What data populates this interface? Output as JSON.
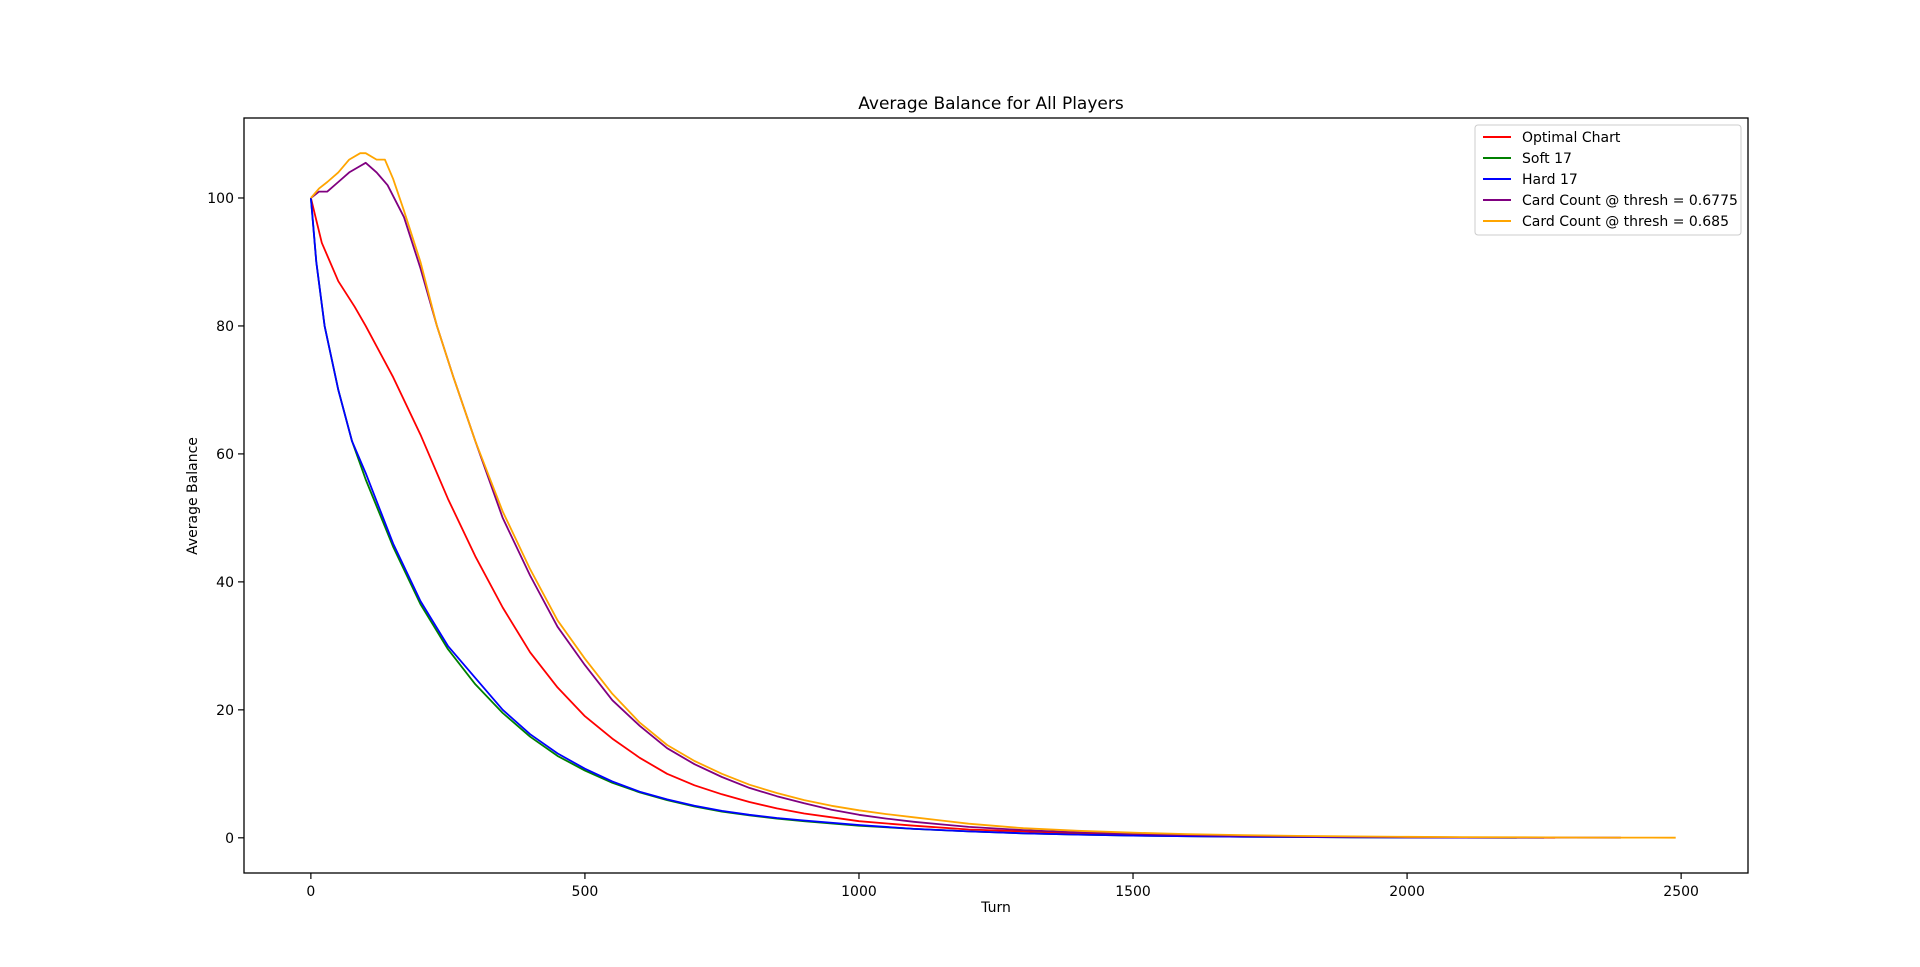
{
  "chart_data": {
    "type": "line",
    "title": "Average Balance for All Players",
    "xlabel": "Turn",
    "ylabel": "Average Balance",
    "xlim": [
      -122,
      2622
    ],
    "ylim": [
      -5.5,
      112.5
    ],
    "xticks": [
      0,
      500,
      1000,
      1500,
      2000,
      2500
    ],
    "yticks": [
      0,
      20,
      40,
      60,
      80,
      100
    ],
    "grid": false,
    "legend_position": "top-right",
    "series": [
      {
        "name": "Optimal Chart",
        "color": "#ff0000",
        "x": [
          0,
          20,
          50,
          80,
          100,
          150,
          200,
          250,
          300,
          350,
          400,
          450,
          500,
          550,
          600,
          650,
          700,
          750,
          800,
          850,
          900,
          950,
          1000,
          1100,
          1200,
          1300,
          1400,
          1500,
          1600,
          1700,
          1800,
          1900,
          2000,
          2100,
          2200,
          2270
        ],
        "y": [
          100,
          93,
          87,
          83,
          80,
          72,
          63,
          53,
          44,
          36,
          29,
          23.5,
          19,
          15.5,
          12.5,
          10,
          8.2,
          6.8,
          5.6,
          4.6,
          3.8,
          3.2,
          2.6,
          1.9,
          1.3,
          1.0,
          0.7,
          0.5,
          0.35,
          0.25,
          0.18,
          0.12,
          0.08,
          0.05,
          0.03,
          0.02
        ]
      },
      {
        "name": "Soft 17",
        "color": "#008000",
        "x": [
          0,
          10,
          25,
          50,
          75,
          100,
          150,
          200,
          250,
          300,
          350,
          400,
          450,
          500,
          550,
          600,
          650,
          700,
          750,
          800,
          850,
          900,
          1000,
          1100,
          1200,
          1300,
          1400,
          1500,
          1600,
          1700,
          1800,
          1900,
          2000,
          2100,
          2200
        ],
        "y": [
          100,
          90,
          80,
          70,
          62,
          56,
          45.5,
          36.5,
          29.5,
          24,
          19.5,
          15.8,
          12.8,
          10.5,
          8.6,
          7.1,
          5.9,
          4.9,
          4.1,
          3.5,
          3.0,
          2.6,
          1.9,
          1.4,
          1.0,
          0.7,
          0.5,
          0.35,
          0.25,
          0.17,
          0.12,
          0.08,
          0.05,
          0.03,
          0.02
        ]
      },
      {
        "name": "Hard 17",
        "color": "#0000ff",
        "x": [
          0,
          10,
          25,
          50,
          75,
          100,
          150,
          200,
          250,
          300,
          350,
          400,
          450,
          500,
          550,
          600,
          650,
          700,
          750,
          800,
          850,
          900,
          1000,
          1100,
          1200,
          1300,
          1400,
          1500,
          1600,
          1700,
          1800,
          1900,
          2000,
          2100,
          2200,
          2250
        ],
        "y": [
          100,
          90,
          80,
          70,
          62,
          57,
          46,
          37,
          30,
          25,
          20,
          16.2,
          13.2,
          10.8,
          8.8,
          7.2,
          6.0,
          5.0,
          4.2,
          3.6,
          3.1,
          2.7,
          2.0,
          1.4,
          1.0,
          0.7,
          0.5,
          0.35,
          0.25,
          0.17,
          0.12,
          0.08,
          0.05,
          0.03,
          0.02,
          0.01
        ]
      },
      {
        "name": "Card Count @ thresh = 0.6775",
        "color": "#800080",
        "x": [
          0,
          15,
          30,
          50,
          70,
          90,
          100,
          120,
          140,
          170,
          200,
          230,
          260,
          300,
          350,
          400,
          450,
          500,
          550,
          600,
          650,
          700,
          750,
          800,
          850,
          900,
          950,
          1000,
          1050,
          1100,
          1150,
          1200,
          1300,
          1400,
          1500,
          1600,
          1700,
          1800,
          1900,
          2000,
          2100,
          2200,
          2300,
          2390
        ],
        "y": [
          100,
          101,
          101,
          102.5,
          104,
          105,
          105.5,
          104,
          102,
          97,
          89,
          80,
          72,
          62,
          50,
          41,
          33,
          27,
          21.5,
          17.5,
          14,
          11.5,
          9.5,
          7.8,
          6.5,
          5.4,
          4.4,
          3.6,
          3.0,
          2.5,
          2.1,
          1.7,
          1.2,
          0.85,
          0.6,
          0.42,
          0.3,
          0.2,
          0.14,
          0.1,
          0.07,
          0.05,
          0.03,
          0.02
        ]
      },
      {
        "name": "Card Count @ thresh = 0.685",
        "color": "#ffa500",
        "x": [
          0,
          15,
          30,
          50,
          70,
          90,
          100,
          120,
          135,
          150,
          170,
          200,
          230,
          260,
          300,
          350,
          400,
          450,
          500,
          550,
          600,
          650,
          700,
          750,
          800,
          850,
          900,
          950,
          1000,
          1050,
          1100,
          1150,
          1200,
          1300,
          1400,
          1500,
          1600,
          1700,
          1800,
          1900,
          2000,
          2100,
          2200,
          2300,
          2400,
          2490
        ],
        "y": [
          100,
          101.5,
          102.5,
          104,
          106,
          107,
          107,
          106,
          106,
          103,
          98,
          90,
          80,
          72,
          62,
          51,
          42,
          34,
          28,
          22.5,
          18,
          14.5,
          12,
          10,
          8.3,
          7.0,
          5.9,
          5.0,
          4.3,
          3.7,
          3.2,
          2.7,
          2.2,
          1.5,
          1.1,
          0.8,
          0.58,
          0.42,
          0.3,
          0.22,
          0.16,
          0.11,
          0.08,
          0.05,
          0.03,
          0.02
        ]
      }
    ]
  }
}
